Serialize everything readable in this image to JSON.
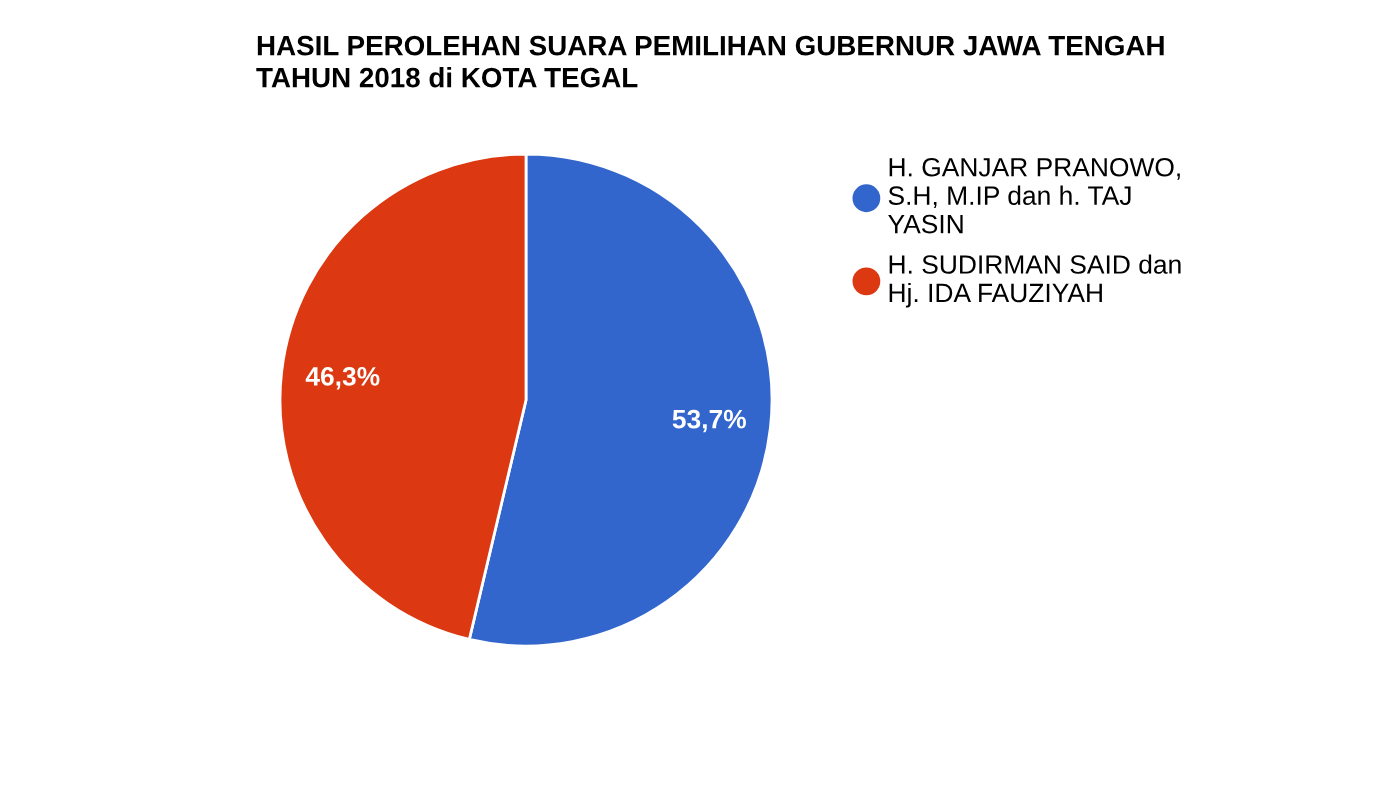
{
  "chart_data": {
    "type": "pie",
    "title": "HASIL PEROLEHAN SUARA PEMILIHAN GUBERNUR JAWA TENGAH TAHUN 2018 di KOTA TEGAL",
    "categories": [
      "H. GANJAR PRANOWO, S.H, M.IP dan h. TAJ YASIN",
      "H. SUDIRMAN SAID dan Hj. IDA FAUZIYAH"
    ],
    "values": [
      53.7,
      46.3
    ],
    "colors": [
      "#3366cc",
      "#dc3912"
    ],
    "value_labels": [
      "53,7%",
      "46,3%"
    ],
    "legend": "right"
  }
}
